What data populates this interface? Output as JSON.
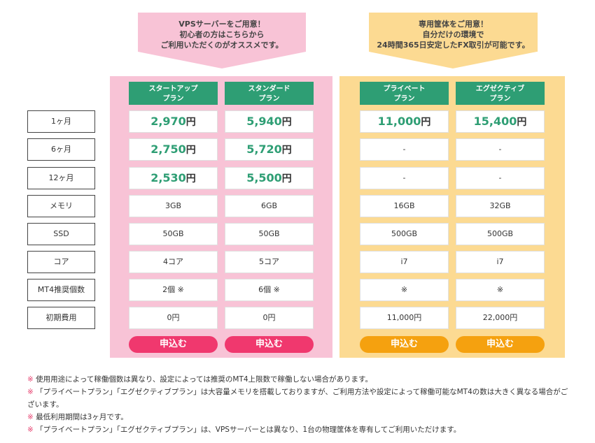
{
  "callouts": {
    "vps": [
      "VPSサーバーをご用意！",
      "初心者の方はこちらから",
      "ご利用いただくのがオススメです。"
    ],
    "dedicated": [
      "専用筐体をご用意！",
      "自分だけの環境で",
      "24時間365日安定したFX取引が可能です。"
    ]
  },
  "row_labels": [
    "1ヶ月",
    "6ヶ月",
    "12ヶ月",
    "メモリ",
    "SSD",
    "コア",
    "MT4推奨個数",
    "初期費用"
  ],
  "plans": [
    {
      "name_line1": "スタートアップ",
      "name_line2": "プラン",
      "price_1m": "2,970",
      "price_6m": "2,750",
      "price_12m": "2,530",
      "yen": "円",
      "memory": "3GB",
      "ssd": "50GB",
      "core": "4コア",
      "mt4": "2個 ※",
      "initial": "0円",
      "button": "申込む"
    },
    {
      "name_line1": "スタンダード",
      "name_line2": "プラン",
      "price_1m": "5,940",
      "price_6m": "5,720",
      "price_12m": "5,500",
      "yen": "円",
      "memory": "6GB",
      "ssd": "50GB",
      "core": "5コア",
      "mt4": "6個 ※",
      "initial": "0円",
      "button": "申込む"
    },
    {
      "name_line1": "プライベート",
      "name_line2": "プラン",
      "price_1m": "11,000",
      "price_6m": "-",
      "price_12m": "-",
      "yen": "円",
      "memory": "16GB",
      "ssd": "500GB",
      "core": "i7",
      "mt4": "※",
      "initial": "11,000円",
      "button": "申込む"
    },
    {
      "name_line1": "エグゼクティブ",
      "name_line2": "プラン",
      "price_1m": "15,400",
      "price_6m": "-",
      "price_12m": "-",
      "yen": "円",
      "memory": "32GB",
      "ssd": "500GB",
      "core": "i7",
      "mt4": "※",
      "initial": "22,000円",
      "button": "申込む"
    }
  ],
  "notes": {
    "mark": "※",
    "items": [
      "使用用途によって稼働個数は異なり、設定によっては推奨のMT4上限数で稼働しない場合があります。",
      "「プライベートプラン」「エグゼクティブプラン」は大容量メモリを搭載しておりますが、ご利用方法や設定によって稼働可能なMT4の数は大きく異なる場合がございます。",
      "最低利用期間は3ヶ月です。",
      "「プライベートプラン」「エグゼクティブプラン」は、VPSサーバーとは異なり、1台の物理筐体を専有してご利用いただけます。"
    ]
  },
  "colors": {
    "pink": "#f8c3d6",
    "yellow": "#fcda92",
    "green": "#2e9e74",
    "pink_button": "#f0386e",
    "orange_button": "#f5a10f"
  }
}
